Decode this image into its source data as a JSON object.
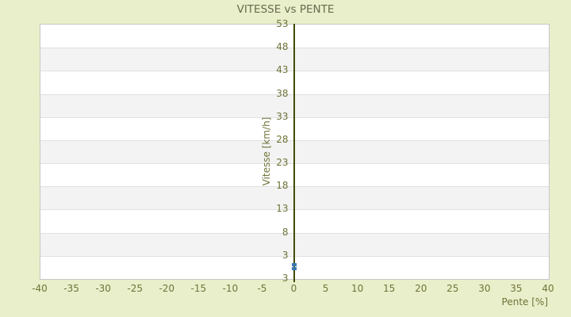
{
  "chart_data": {
    "type": "scatter",
    "title": "VITESSE vs PENTE",
    "xlabel": "Pente [%]",
    "ylabel": "Vitesse [km/h]",
    "xlim": [
      -40,
      40
    ],
    "x_ticks": [
      -40,
      -35,
      -30,
      -25,
      -20,
      -15,
      -10,
      -5,
      0,
      5,
      10,
      15,
      20,
      25,
      30,
      35,
      40
    ],
    "y_ticks_top_to_bottom": [
      53,
      48,
      43,
      38,
      33,
      28,
      23,
      18,
      13,
      8,
      3,
      3
    ],
    "grid": "horizontal-bands-alternating",
    "legend": "none",
    "series": [
      {
        "name": "vitesse-points",
        "marker": "square",
        "color": "#3a7ab2",
        "points": [
          {
            "x": 0,
            "y": 0.9
          },
          {
            "x": 0,
            "y": 0.1
          }
        ]
      }
    ],
    "colors": {
      "background": "#e9efca",
      "plot_background": "#ffffff",
      "band_alternate": "#f3f3f3",
      "gridline": "#e0e0e0",
      "plot_border": "#c6c6c6",
      "axis_line": "#414b05",
      "tick_label": "#70733a",
      "title_text": "#69694f",
      "marker": "#3a7ab2"
    }
  }
}
